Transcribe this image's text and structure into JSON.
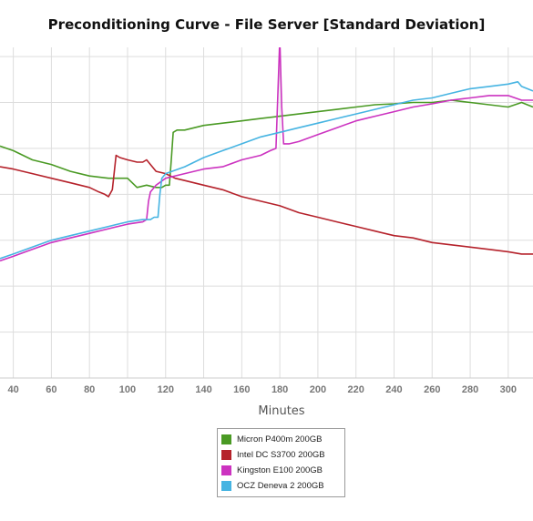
{
  "chart_data": {
    "type": "line",
    "title": "Preconditioning Curve - File Server [Standard Deviation]",
    "xlabel": "Minutes",
    "ylabel": "",
    "x_ticks": [
      40,
      60,
      80,
      100,
      120,
      140,
      160,
      180,
      200,
      220,
      240,
      260,
      280,
      300
    ],
    "xlim": [
      33,
      313
    ],
    "ylim": [
      0,
      7.2
    ],
    "grid": true,
    "legend_position": "bottom",
    "series": [
      {
        "name": "Micron P400m 200GB",
        "color": "#4a9a24",
        "x": [
          33,
          40,
          50,
          60,
          70,
          80,
          90,
          100,
          105,
          110,
          115,
          118,
          120,
          122,
          123,
          124,
          126,
          130,
          140,
          150,
          160,
          170,
          180,
          190,
          200,
          210,
          220,
          230,
          240,
          250,
          260,
          270,
          280,
          290,
          300,
          307,
          313
        ],
        "y": [
          5.05,
          4.95,
          4.75,
          4.65,
          4.5,
          4.4,
          4.35,
          4.35,
          4.15,
          4.2,
          4.15,
          4.15,
          4.2,
          4.2,
          4.75,
          5.35,
          5.4,
          5.4,
          5.5,
          5.55,
          5.6,
          5.65,
          5.7,
          5.75,
          5.8,
          5.85,
          5.9,
          5.95,
          5.97,
          6.0,
          6.0,
          6.05,
          6.0,
          5.95,
          5.9,
          6.0,
          5.9
        ]
      },
      {
        "name": "Intel DC S3700 200GB",
        "color": "#b5222b",
        "x": [
          33,
          40,
          50,
          60,
          70,
          80,
          85,
          88,
          90,
          92,
          94,
          96,
          100,
          105,
          108,
          110,
          115,
          120,
          125,
          130,
          140,
          150,
          160,
          170,
          180,
          190,
          200,
          210,
          220,
          230,
          240,
          250,
          260,
          270,
          280,
          290,
          300,
          307,
          313
        ],
        "y": [
          4.6,
          4.55,
          4.45,
          4.35,
          4.25,
          4.15,
          4.05,
          4.0,
          3.95,
          4.1,
          4.85,
          4.8,
          4.75,
          4.7,
          4.7,
          4.75,
          4.5,
          4.45,
          4.35,
          4.3,
          4.2,
          4.1,
          3.95,
          3.85,
          3.75,
          3.6,
          3.5,
          3.4,
          3.3,
          3.2,
          3.1,
          3.05,
          2.95,
          2.9,
          2.85,
          2.8,
          2.75,
          2.7,
          2.7
        ]
      },
      {
        "name": "Kingston E100 200GB",
        "color": "#cc33c0",
        "x": [
          33,
          40,
          50,
          60,
          70,
          80,
          90,
          100,
          108,
          110,
          111,
          112,
          115,
          120,
          130,
          140,
          150,
          160,
          170,
          175,
          178,
          179,
          180,
          181,
          182,
          185,
          190,
          200,
          210,
          220,
          230,
          240,
          250,
          260,
          270,
          280,
          290,
          300,
          307,
          313
        ],
        "y": [
          2.55,
          2.65,
          2.8,
          2.95,
          3.05,
          3.15,
          3.25,
          3.35,
          3.4,
          3.45,
          3.85,
          4.05,
          4.2,
          4.35,
          4.45,
          4.55,
          4.6,
          4.75,
          4.85,
          4.95,
          5.0,
          6.2,
          7.4,
          5.9,
          5.1,
          5.1,
          5.15,
          5.3,
          5.45,
          5.6,
          5.7,
          5.8,
          5.9,
          5.97,
          6.05,
          6.1,
          6.15,
          6.15,
          6.05,
          6.05
        ]
      },
      {
        "name": "OCZ Deneva 2 200GB",
        "color": "#46b4e2",
        "x": [
          33,
          40,
          50,
          60,
          70,
          80,
          90,
          100,
          108,
          112,
          114,
          115,
          116,
          117,
          118,
          120,
          130,
          140,
          150,
          160,
          170,
          180,
          190,
          200,
          210,
          220,
          230,
          240,
          250,
          260,
          270,
          280,
          290,
          300,
          305,
          307,
          313
        ],
        "y": [
          2.6,
          2.7,
          2.85,
          3.0,
          3.1,
          3.2,
          3.3,
          3.4,
          3.45,
          3.45,
          3.5,
          3.5,
          3.5,
          4.0,
          4.35,
          4.45,
          4.6,
          4.8,
          4.95,
          5.1,
          5.25,
          5.35,
          5.45,
          5.55,
          5.65,
          5.75,
          5.85,
          5.95,
          6.05,
          6.1,
          6.2,
          6.3,
          6.35,
          6.4,
          6.45,
          6.35,
          6.25
        ]
      }
    ]
  }
}
